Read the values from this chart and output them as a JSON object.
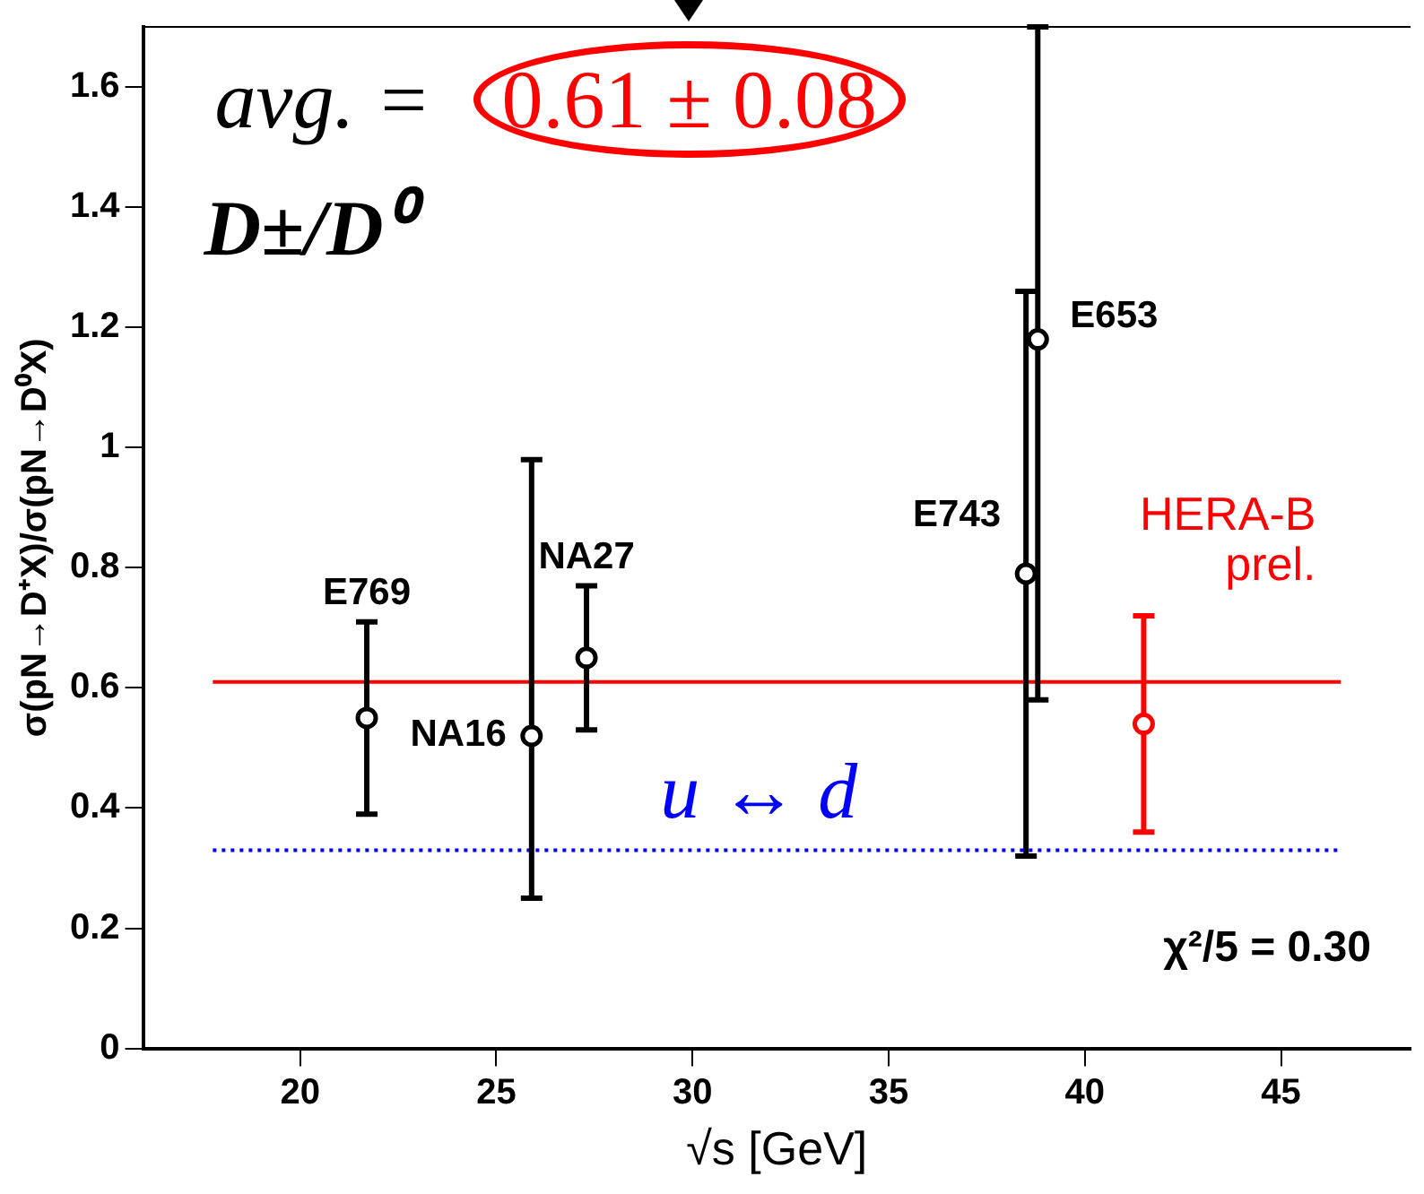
{
  "chart_data": {
    "type": "scatter",
    "xlabel": "√s [GeV]",
    "ylabel": "σ(pN→D⁺X)/σ(pN→D⁰X)",
    "xlim": [
      16,
      48.3
    ],
    "xticks": [
      20,
      25,
      30,
      35,
      40,
      45
    ],
    "ylim": [
      0,
      1.7
    ],
    "yticks": [
      0,
      0.2,
      0.4,
      0.6,
      0.8,
      1,
      1.2,
      1.4,
      1.6
    ],
    "grid": false,
    "legend": false,
    "marker": "circle",
    "series": [
      {
        "name": "E769",
        "color": "#000000",
        "x": [
          21.7
        ],
        "values": [
          0.55
        ],
        "errors": [
          [
            0.39,
            0.71
          ]
        ]
      },
      {
        "name": "NA16",
        "color": "#000000",
        "x": [
          25.9
        ],
        "values": [
          0.52
        ],
        "errors": [
          [
            0.25,
            0.98
          ]
        ]
      },
      {
        "name": "NA27",
        "color": "#000000",
        "x": [
          27.3
        ],
        "values": [
          0.65
        ],
        "errors": [
          [
            0.53,
            0.77
          ]
        ]
      },
      {
        "name": "E743",
        "color": "#000000",
        "x": [
          38.5
        ],
        "values": [
          0.79
        ],
        "errors": [
          [
            0.32,
            1.26
          ]
        ]
      },
      {
        "name": "E653",
        "color": "#000000",
        "x": [
          38.8
        ],
        "values": [
          1.18
        ],
        "errors": [
          [
            0.58,
            1.7
          ]
        ]
      },
      {
        "name": "HERA-B\nprel.",
        "color": "#ff0000",
        "x": [
          41.5
        ],
        "values": [
          0.54
        ],
        "errors": [
          [
            0.36,
            0.72
          ]
        ]
      }
    ],
    "ref_lines": [
      {
        "axis": "y",
        "value": 0.61,
        "label": null,
        "color": "#ff0000",
        "line_style": "solid"
      },
      {
        "axis": "y",
        "value": 0.33,
        "label": "u ↔ d",
        "color": "#0000ff",
        "line_style": "dotted"
      }
    ],
    "annotations": [
      "avg. =",
      "0.61 ± 0.08",
      "D±/D⁰",
      "χ²/5 = 0.30"
    ]
  }
}
